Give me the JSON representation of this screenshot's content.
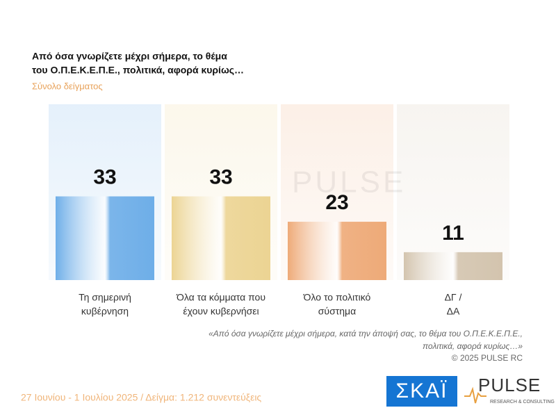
{
  "chart_data": {
    "type": "bar",
    "title": [
      "Από όσα γνωρίζετε μέχρι σήμερα, το θέμα",
      "του  Ο.Π.Ε.Κ.Ε.Π.Ε.,  πολιτικά, αφορά κυρίως…"
    ],
    "subtitle": "Σύνολο δείγματος",
    "categories": [
      [
        "Τη σημερινή",
        "κυβέρνηση"
      ],
      [
        "Όλα τα κόμματα που",
        "έχουν κυβερνήσει"
      ],
      [
        "Όλο το πολιτικό",
        "σύστημα"
      ],
      [
        "ΔΓ /",
        "ΔΑ"
      ]
    ],
    "values": [
      33,
      33,
      23,
      11
    ],
    "colors": [
      "#6eaee8",
      "#ecd493",
      "#eeaa78",
      "#d3c4ae"
    ],
    "note": [
      "«Από όσα γνωρίζετε μέχρι σήμερα, κατά την άποψή σας, το θέμα του Ο.Π.Ε.Κ.Ε.Π.Ε.,",
      "πολιτικά, αφορά κυρίως…»",
      "©  2025  PULSE RC"
    ],
    "footer": "27 Ιουνίου - 1 Ιουλίου 2025  /  Δείγμα:  1.212 συνεντεύξεις",
    "watermark": "PULSE",
    "logos": {
      "skai": "ΣΚΑΪ",
      "pulse": "PULSE",
      "pulse_tagline": "RESEARCH & CONSULTING"
    }
  }
}
